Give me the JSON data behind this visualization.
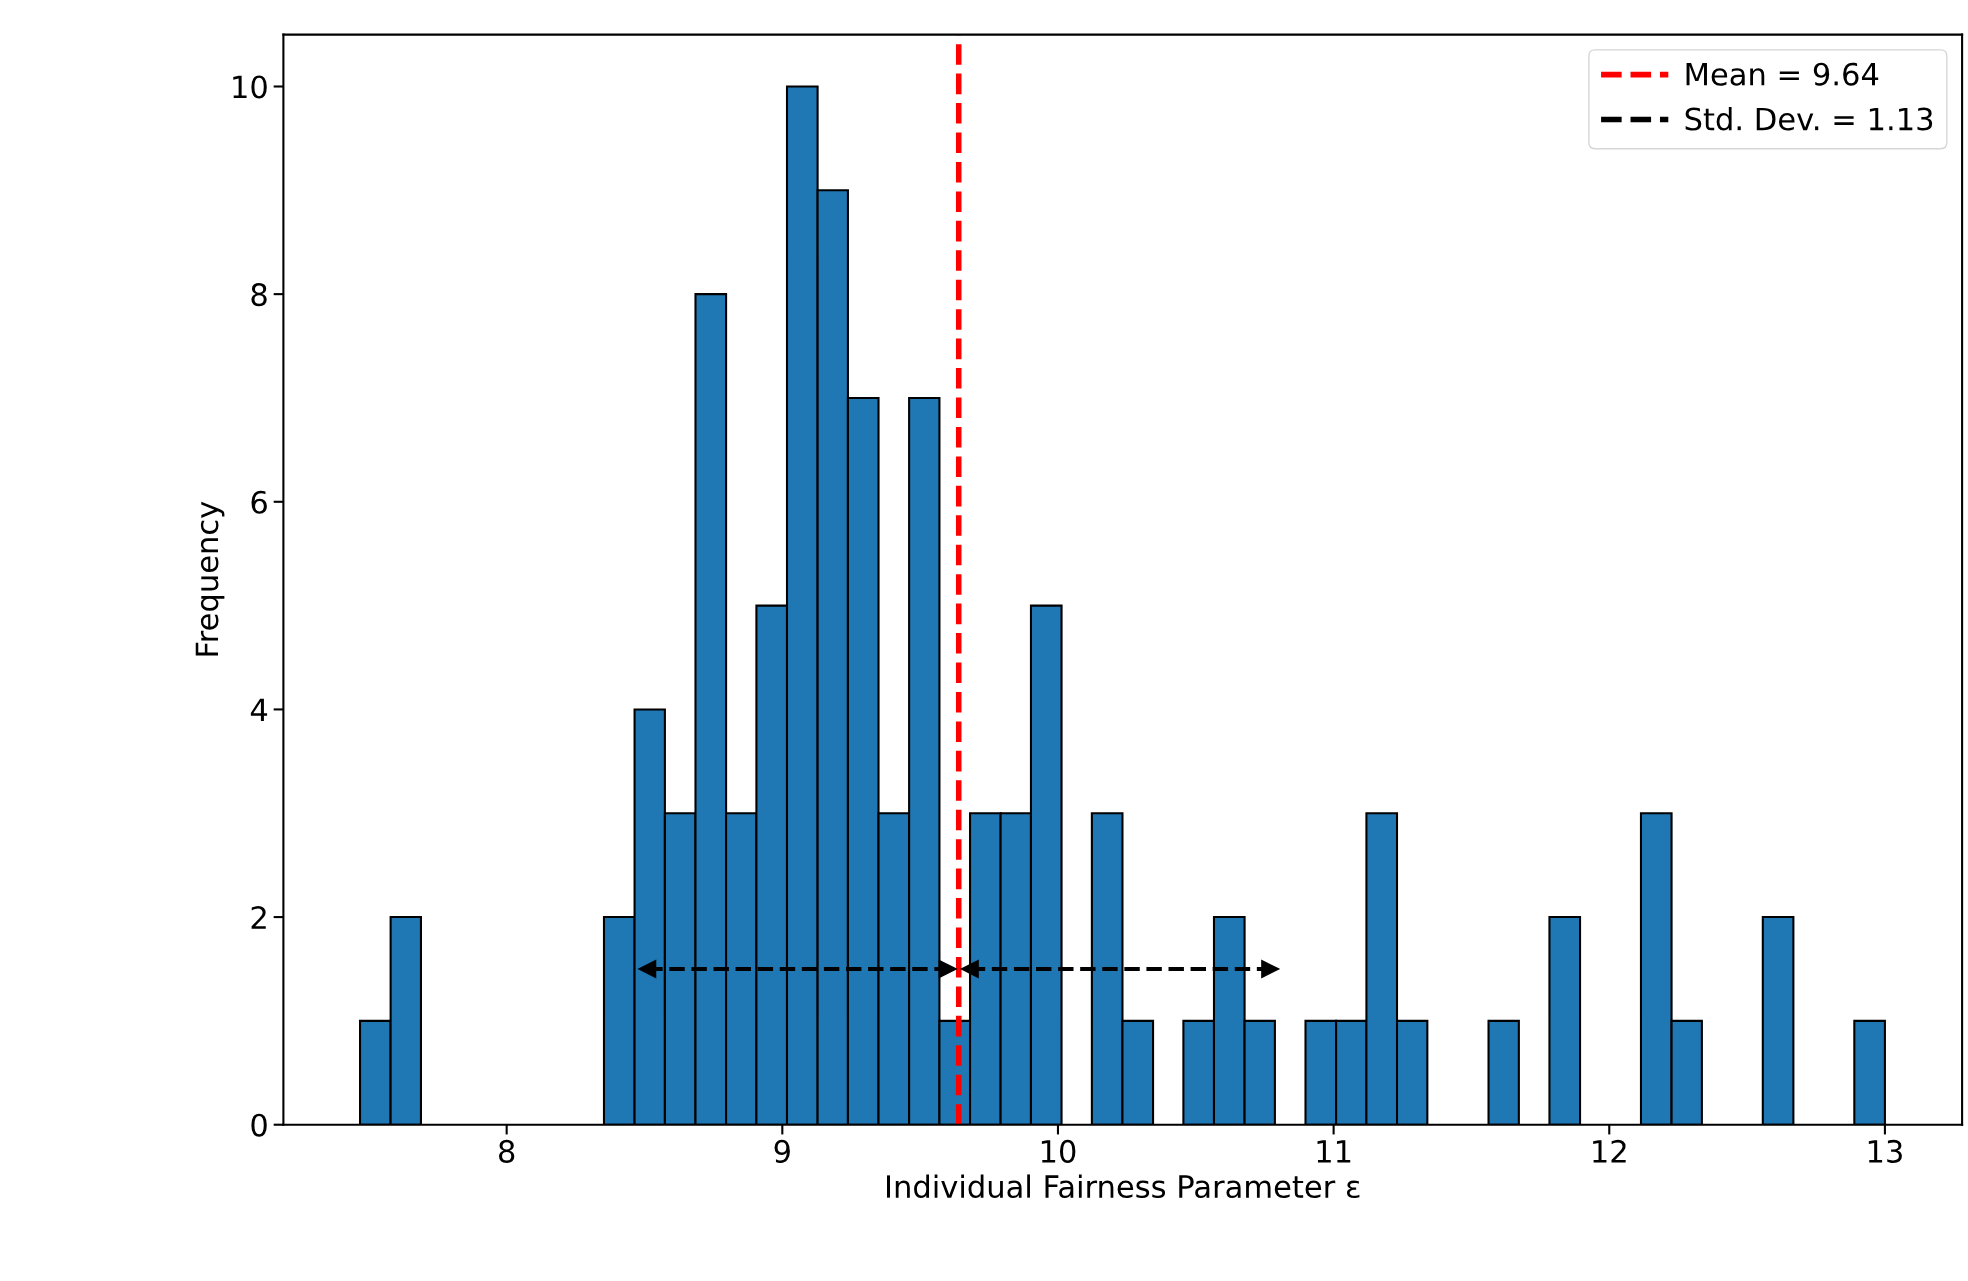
{
  "chart_data": {
    "type": "histogram",
    "xlabel": "Individual Fairness Parameter ε",
    "ylabel": "Frequency",
    "bins": [
      7.468,
      7.579,
      7.689,
      7.8,
      7.911,
      8.021,
      8.132,
      8.243,
      8.353,
      8.464,
      8.574,
      8.685,
      8.796,
      8.906,
      9.017,
      9.128,
      9.238,
      9.349,
      9.46,
      9.57,
      9.681,
      9.792,
      9.902,
      10.013,
      10.123,
      10.234,
      10.345,
      10.455,
      10.566,
      10.677,
      10.787,
      10.898,
      11.009,
      11.119,
      11.23,
      11.34,
      11.451,
      11.562,
      11.672,
      11.783,
      11.894,
      12.004,
      12.115,
      12.226,
      12.336,
      12.447,
      12.557,
      12.668,
      12.779,
      12.889,
      13.0
    ],
    "values": [
      1,
      2,
      0,
      0,
      0,
      0,
      0,
      0,
      2,
      4,
      3,
      8,
      3,
      5,
      10,
      9,
      7,
      3,
      7,
      1,
      3,
      3,
      5,
      0,
      3,
      1,
      0,
      1,
      2,
      1,
      0,
      1,
      1,
      3,
      1,
      0,
      0,
      1,
      0,
      2,
      0,
      0,
      3,
      1,
      0,
      0,
      2,
      0,
      0,
      1
    ],
    "color": "#1f77b4",
    "series": [
      {
        "type": "line",
        "name": "Mean = 9.64",
        "color": "#ff0000",
        "line_style": "dashed",
        "x": [
          9.64,
          9.64
        ],
        "values": [
          0,
          10.5
        ]
      },
      {
        "type": "line",
        "name": "Std. Dev. = 1.13",
        "color": "#000000",
        "line_style": "dashed",
        "marker": "triangle",
        "x": [
          8.51,
          9.6,
          9.64,
          9.68,
          10.77
        ],
        "values": [
          1.5,
          1.5,
          null,
          1.5,
          1.5
        ]
      }
    ],
    "xlim": [
      7.19,
      13.28
    ],
    "xticks": [
      8,
      9,
      10,
      11,
      12,
      13
    ],
    "ylim": [
      0,
      10.5
    ],
    "yticks": [
      0,
      2,
      4,
      6,
      8,
      10
    ],
    "grid": false,
    "legend": "top right"
  }
}
